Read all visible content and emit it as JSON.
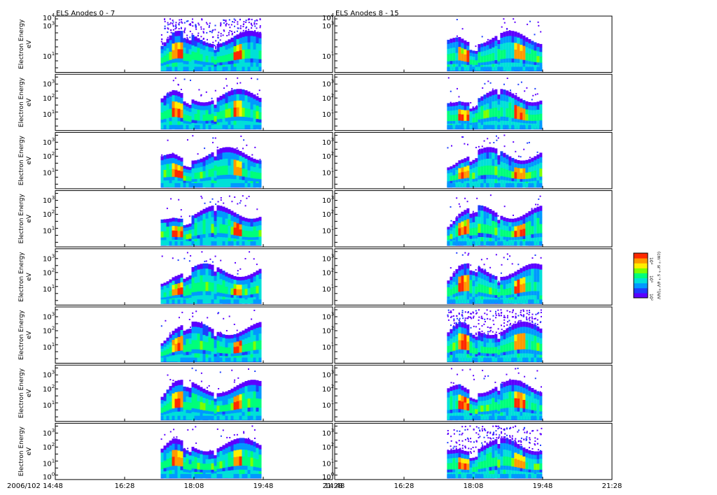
{
  "colors": {
    "frame": "#000000",
    "palette": [
      "#5c00ff",
      "#1d3dff",
      "#0099ff",
      "#00e0d8",
      "#00ff7a",
      "#7dff00",
      "#ffee00",
      "#ff9900",
      "#ff2a00"
    ]
  },
  "chart_data": {
    "type": "heatmap",
    "column_titles": [
      "ELS Anodes 0 - 7",
      "ELS Anodes 8 - 15"
    ],
    "rows": 8,
    "ylabel_line1": "Electron Energy",
    "ylabel_line2": "eV",
    "y_scale": "log",
    "y_ticks": [
      {
        "base": "10",
        "exp": "0"
      },
      {
        "base": "10",
        "exp": "1"
      },
      {
        "base": "10",
        "exp": "2"
      },
      {
        "base": "10",
        "exp": "3"
      },
      {
        "base": "10",
        "exp": "4"
      }
    ],
    "x_tick_labels": [
      "2006/102 14:48",
      "16:28",
      "18:08",
      "19:48",
      "21:28"
    ],
    "x_tick_labels_right": [
      "14:48",
      "16:28",
      "18:08",
      "19:48",
      "21:28"
    ],
    "colorbar": {
      "label": "(cm⁻² sr⁻¹ s⁻¹ eV⁻¹)/eV",
      "ticks": [
        "10⁴",
        "10³",
        "10²"
      ]
    },
    "data_coverage": {
      "left_start": "17:20",
      "left_end": "19:48",
      "right_start": "17:30",
      "right_end": "19:48"
    },
    "panels": [
      {
        "col": 0,
        "row": 0,
        "sparse_top": true
      },
      {
        "col": 1,
        "row": 0,
        "sparse_top": false
      },
      {
        "col": 0,
        "row": 5,
        "sparse_top": false
      },
      {
        "col": 1,
        "row": 5,
        "sparse_top": true
      },
      {
        "col": 1,
        "row": 7,
        "sparse_top": true
      }
    ]
  }
}
